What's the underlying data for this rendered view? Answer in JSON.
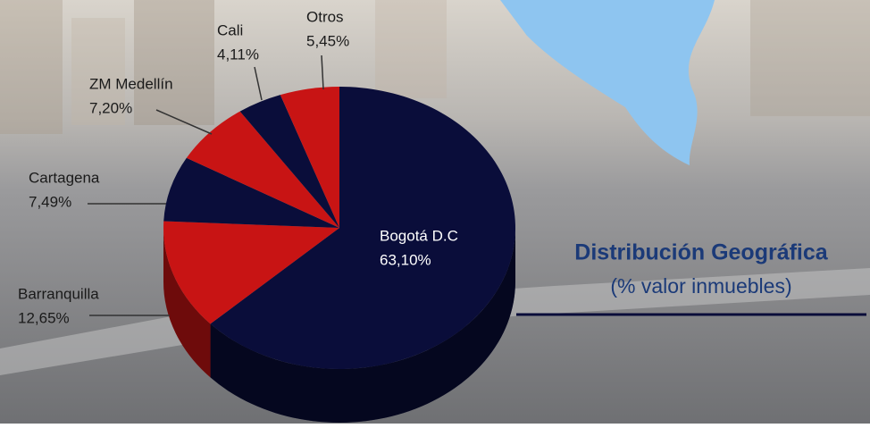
{
  "chart_data": {
    "type": "pie",
    "title": "Distribución Geográfica",
    "subtitle": "(% valor inmuebles)",
    "categories": [
      "Bogotá D.C",
      "Barranquilla",
      "Cartagena",
      "ZM Medellín",
      "Cali",
      "Otros"
    ],
    "values": [
      63.1,
      12.65,
      7.49,
      7.2,
      4.11,
      5.45
    ],
    "value_labels": [
      "63,10%",
      "12,65%",
      "7,49%",
      "7,20%",
      "4,11%",
      "5,45%"
    ],
    "colors": [
      "#0a0d3a",
      "#c81414",
      "#0a0d3a",
      "#c81414",
      "#0a0d3a",
      "#c81414"
    ]
  }
}
